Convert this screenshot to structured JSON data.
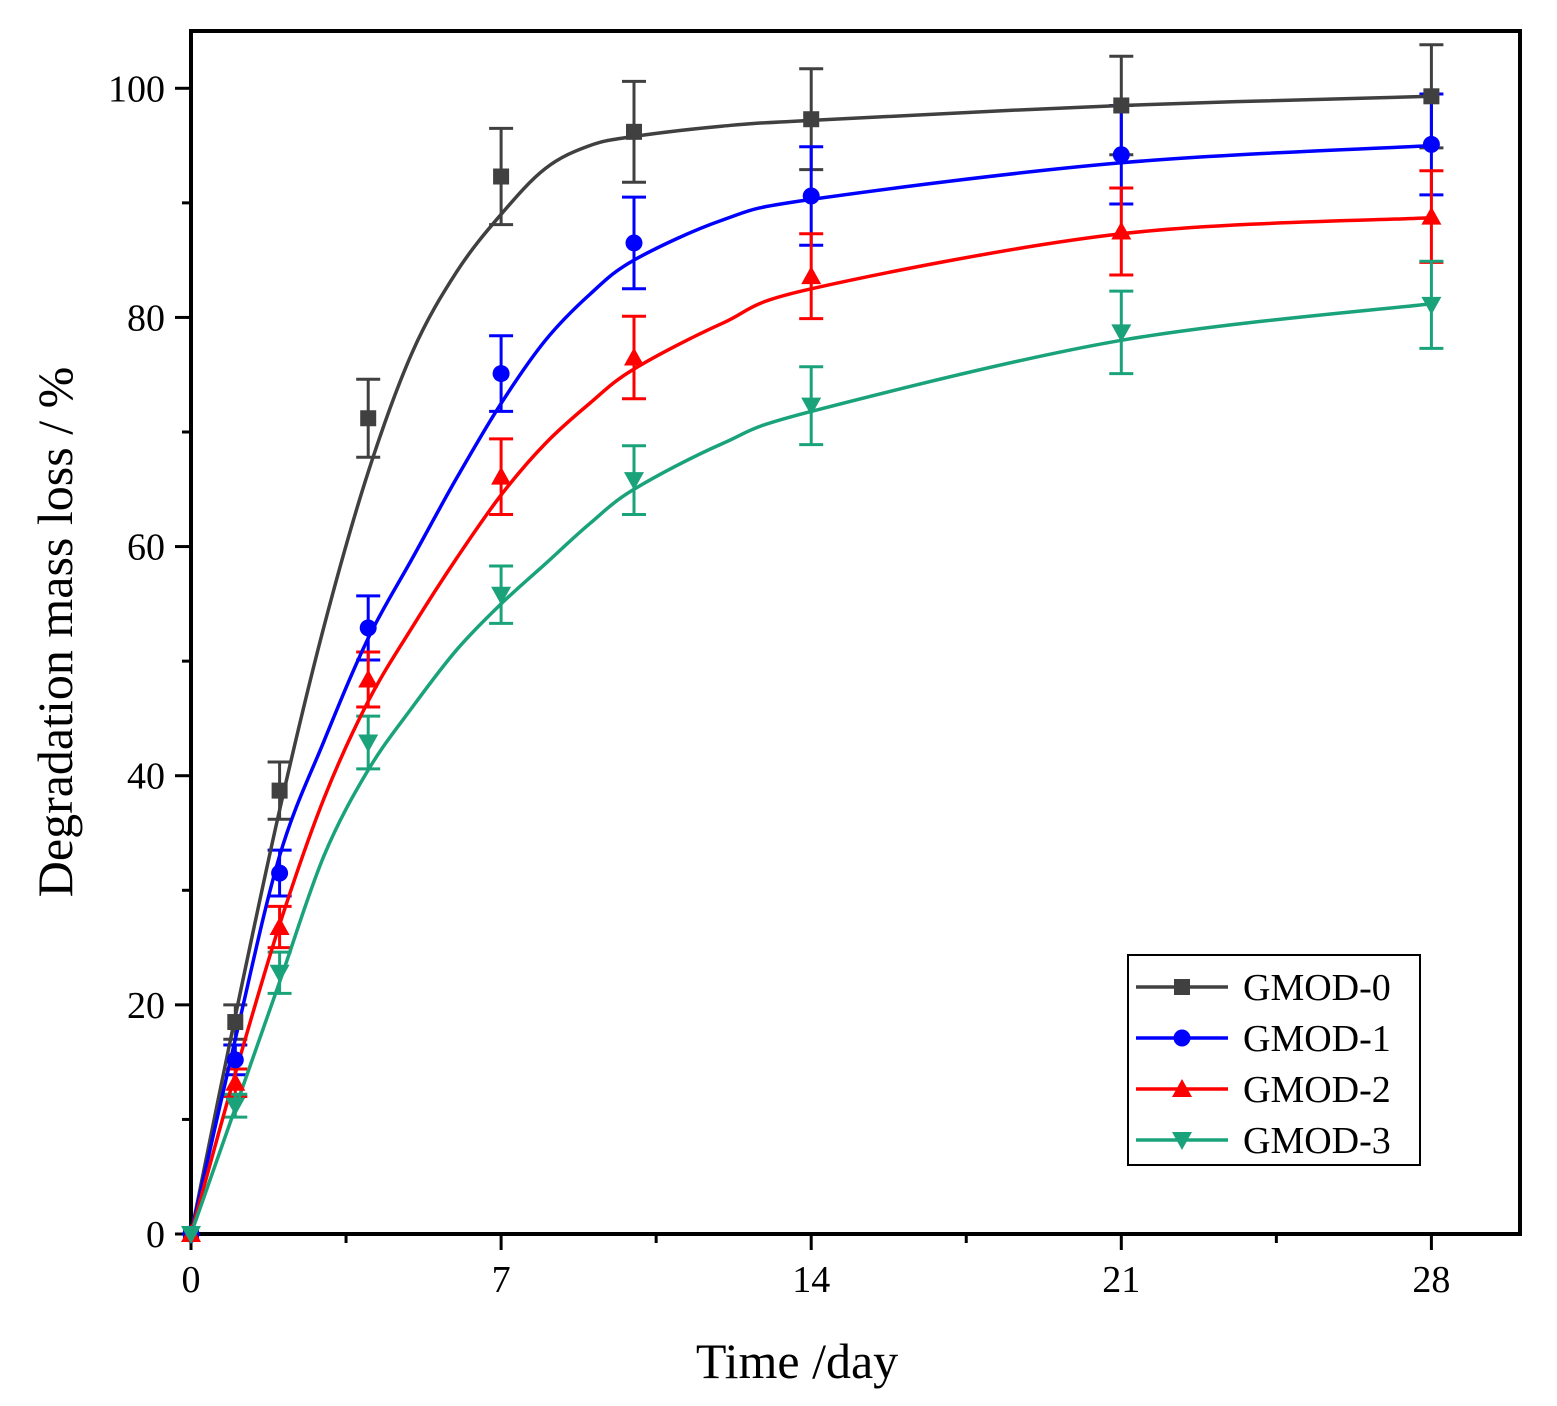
{
  "chart_data": {
    "type": "line",
    "xlabel": "Time /day",
    "ylabel": "Degradation mass loss / %",
    "xlim": [
      0,
      30
    ],
    "ylim": [
      0,
      105
    ],
    "x_ticks": [
      0,
      7,
      14,
      21,
      28
    ],
    "y_ticks": [
      0,
      20,
      40,
      60,
      80,
      100
    ],
    "x_tick_labels": [
      "0",
      "7",
      "14",
      "21",
      "28"
    ],
    "y_tick_labels": [
      "0",
      "20",
      "40",
      "60",
      "80",
      "100"
    ],
    "grid": false,
    "legend_position": "bottom-right",
    "series": [
      {
        "name": "GMOD-0",
        "color": "#404040",
        "marker": "square",
        "x": [
          0,
          1,
          2,
          4,
          7,
          10,
          14,
          21,
          28
        ],
        "y": [
          0,
          18.5,
          38.7,
          71.2,
          92.3,
          96.2,
          97.3,
          98.5,
          99.3
        ],
        "err": [
          0,
          1.5,
          2.5,
          3.4,
          4.2,
          4.4,
          4.4,
          4.3,
          4.5
        ],
        "fit": [
          [
            0,
            0
          ],
          [
            1,
            19
          ],
          [
            2,
            37
          ],
          [
            3,
            53
          ],
          [
            4,
            66.5
          ],
          [
            5,
            77
          ],
          [
            6,
            84
          ],
          [
            7,
            89
          ],
          [
            8,
            93
          ],
          [
            9,
            95
          ],
          [
            10,
            95.8
          ],
          [
            12,
            96.7
          ],
          [
            14,
            97.2
          ],
          [
            21,
            98.5
          ],
          [
            28,
            99.3
          ]
        ]
      },
      {
        "name": "GMOD-1",
        "color": "#0000ff",
        "marker": "circle",
        "x": [
          0,
          1,
          2,
          4,
          7,
          10,
          14,
          21,
          28
        ],
        "y": [
          0,
          15.2,
          31.5,
          52.9,
          75.1,
          86.5,
          90.6,
          94.2,
          95.1
        ],
        "err": [
          0,
          1.3,
          2.0,
          2.8,
          3.3,
          4.0,
          4.3,
          4.3,
          4.4
        ],
        "fit": [
          [
            0,
            0
          ],
          [
            1,
            17
          ],
          [
            2,
            33
          ],
          [
            3,
            43
          ],
          [
            4,
            52
          ],
          [
            5,
            59
          ],
          [
            6,
            66
          ],
          [
            7,
            72.5
          ],
          [
            8,
            78
          ],
          [
            9,
            82
          ],
          [
            10,
            85
          ],
          [
            12,
            88.5
          ],
          [
            14,
            90.3
          ],
          [
            21,
            93.5
          ],
          [
            28,
            95.0
          ]
        ]
      },
      {
        "name": "GMOD-2",
        "color": "#ff0000",
        "marker": "triangle-up",
        "x": [
          0,
          1,
          2,
          4,
          7,
          10,
          14,
          21,
          28
        ],
        "y": [
          0,
          13.2,
          26.8,
          48.4,
          66.1,
          76.5,
          83.6,
          87.5,
          88.8
        ],
        "err": [
          0,
          1.2,
          1.8,
          2.4,
          3.3,
          3.6,
          3.7,
          3.8,
          4.0
        ],
        "fit": [
          [
            0,
            0
          ],
          [
            1,
            14
          ],
          [
            2,
            27
          ],
          [
            3,
            38
          ],
          [
            4,
            46.5
          ],
          [
            5,
            53
          ],
          [
            6,
            59
          ],
          [
            7,
            64.5
          ],
          [
            8,
            69
          ],
          [
            9,
            72.5
          ],
          [
            10,
            75.5
          ],
          [
            12,
            79.5
          ],
          [
            14,
            82.5
          ],
          [
            21,
            87.3
          ],
          [
            28,
            88.7
          ]
        ]
      },
      {
        "name": "GMOD-3",
        "color": "#1aa37a",
        "marker": "triangle-down",
        "x": [
          0,
          1,
          2,
          4,
          7,
          10,
          14,
          21,
          28
        ],
        "y": [
          0,
          11.2,
          22.8,
          42.9,
          55.8,
          65.8,
          72.3,
          78.7,
          81.1
        ],
        "err": [
          0,
          1.0,
          1.8,
          2.3,
          2.5,
          3.0,
          3.4,
          3.6,
          3.8
        ],
        "fit": [
          [
            0,
            0
          ],
          [
            1,
            11
          ],
          [
            2,
            22
          ],
          [
            3,
            33
          ],
          [
            4,
            40.5
          ],
          [
            5,
            46
          ],
          [
            6,
            51
          ],
          [
            7,
            55
          ],
          [
            8,
            58.5
          ],
          [
            9,
            62
          ],
          [
            10,
            65
          ],
          [
            12,
            69
          ],
          [
            14,
            71.8
          ],
          [
            21,
            78
          ],
          [
            28,
            81.2
          ]
        ]
      }
    ]
  }
}
